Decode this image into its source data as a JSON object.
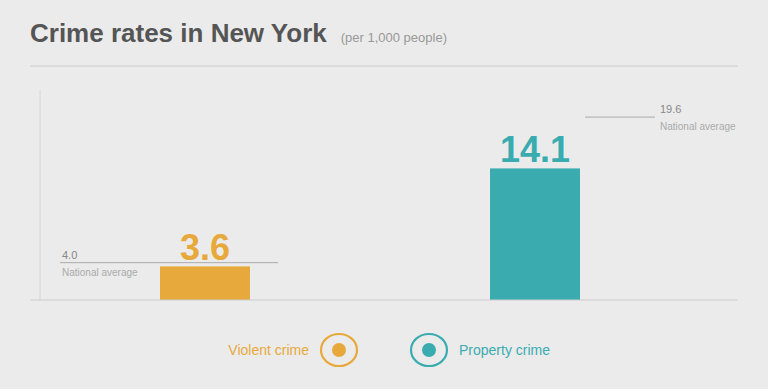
{
  "chart_data": {
    "type": "bar",
    "title": "Crime rates in New York",
    "subtitle": "(per 1,000 people)",
    "categories": [
      "Violent crime",
      "Property crime"
    ],
    "values": [
      3.6,
      14.1
    ],
    "colors": [
      "#e8a93c",
      "#3aacb0"
    ],
    "reference_lines": [
      {
        "name": "National average",
        "value": 4.0,
        "label": "4.0"
      },
      {
        "name": "National average",
        "value": 19.6,
        "label": "19.6"
      }
    ],
    "ylim": [
      0,
      22.5
    ],
    "grid": false,
    "tick_labels": false,
    "data_labels": true,
    "legend": "bottom"
  }
}
